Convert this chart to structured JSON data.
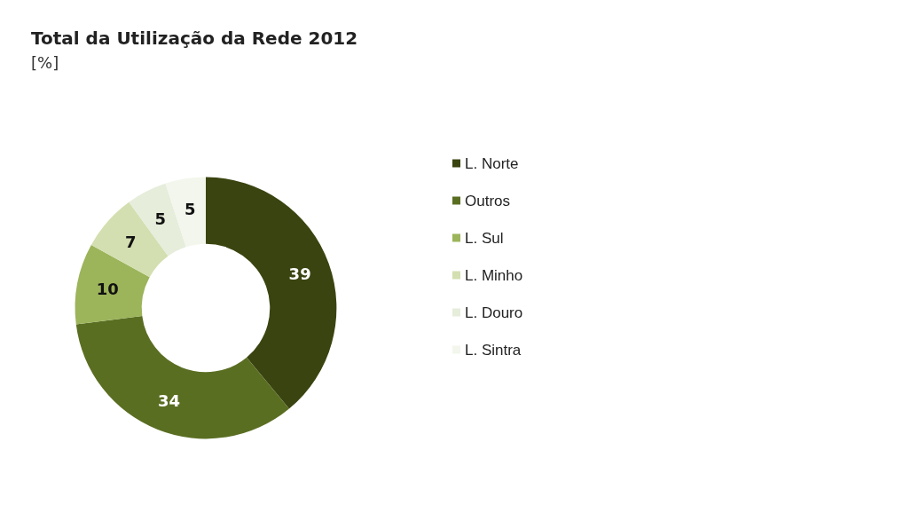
{
  "chart_data": {
    "type": "donut",
    "title": "Total da Utilização da Rede 2012",
    "subtitle": "[%]",
    "categories": [
      "L. Norte",
      "Outros",
      "L. Sul",
      "L. Minho",
      "L. Douro",
      "L. Sintra"
    ],
    "values": [
      39,
      34,
      10,
      7,
      5,
      5
    ],
    "colors": [
      "#3a4410",
      "#5a6e22",
      "#9cb45a",
      "#d3dfb0",
      "#e6eddb",
      "#f2f6ec"
    ],
    "data_labels": true,
    "legend": "right"
  }
}
